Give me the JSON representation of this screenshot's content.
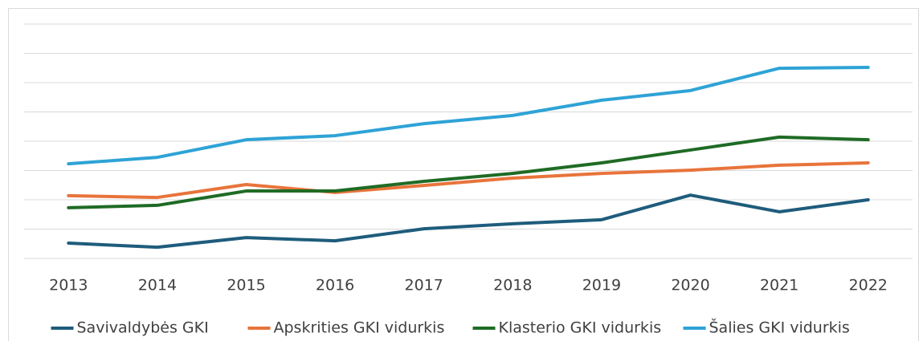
{
  "chart_data": {
    "type": "line",
    "categories": [
      "2013",
      "2014",
      "2015",
      "2016",
      "2017",
      "2018",
      "2019",
      "2020",
      "2021",
      "2022"
    ],
    "series": [
      {
        "name": "Savivaldybės GKI",
        "color": "#1e5c7c",
        "values": [
          0.52,
          0.38,
          0.71,
          0.6,
          1.01,
          1.18,
          1.32,
          2.16,
          1.59,
          2.0
        ]
      },
      {
        "name": "Apskrities GKI vidurkis",
        "color": "#e8743b",
        "values": [
          2.14,
          2.08,
          2.52,
          2.25,
          2.49,
          2.74,
          2.9,
          3.01,
          3.18,
          3.26
        ]
      },
      {
        "name": "Klasterio GKI vidurkis",
        "color": "#1f6b25",
        "values": [
          1.73,
          1.81,
          2.3,
          2.3,
          2.63,
          2.9,
          3.26,
          3.7,
          4.14,
          4.05
        ]
      },
      {
        "name": "Šalies GKI vidurkis",
        "color": "#2ea3d6",
        "values": [
          3.23,
          3.45,
          4.05,
          4.19,
          4.6,
          4.88,
          5.4,
          5.73,
          6.49,
          6.52
        ]
      }
    ],
    "ylim": [
      0,
      8
    ],
    "yticks": [
      0,
      1,
      2,
      3,
      4,
      5,
      6,
      7,
      8
    ],
    "y_tick_labels": false,
    "grid": true,
    "legend": "bottom"
  }
}
